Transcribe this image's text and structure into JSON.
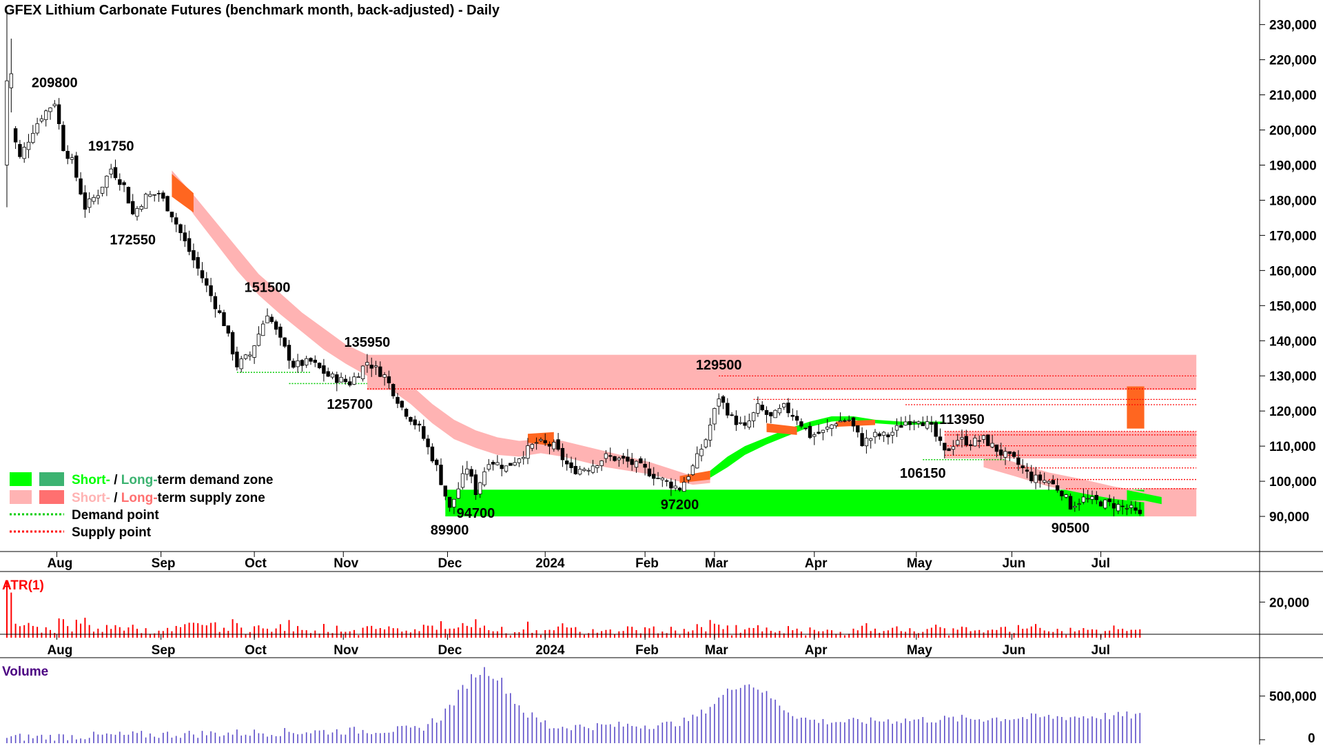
{
  "title": "GFEX Lithium Carbonate Futures (benchmark month, back-adjusted) - Daily",
  "colors": {
    "short_demand": "#00ff00",
    "long_demand": "#3cb371",
    "short_supply": "#ffb3b3",
    "long_supply": "#ff7070",
    "orange": "#ff6620",
    "atr_bar": "#ff0000",
    "volume_bar": "#5a4bc8",
    "demand_point": "#00cc00",
    "supply_point": "#ff0000",
    "atr_label": "#ff0000",
    "volume_label": "#4b0082"
  },
  "legend": {
    "demand_zone": {
      "short": "Short-",
      "sep": " / ",
      "long": "Long-",
      "rest": "term demand zone"
    },
    "supply_zone": {
      "short": "Short-",
      "sep": " / ",
      "long": "Long-",
      "rest": "term supply zone"
    },
    "demand_point": "Demand point",
    "supply_point": "Supply point"
  },
  "panels": {
    "atr_label": "ATR(1)",
    "volume_label": "Volume"
  },
  "chart_data": [
    {
      "type": "candlestick",
      "title": "GFEX Lithium Carbonate Futures (benchmark month, back-adjusted) - Daily",
      "ylim": [
        80000,
        237000
      ],
      "yticks": [
        "230,000",
        "220,000",
        "210,000",
        "200,000",
        "190,000",
        "180,000",
        "170,000",
        "160,000",
        "150,000",
        "140,000",
        "130,000",
        "120,000",
        "110,000",
        "100,000",
        "90,000"
      ],
      "ytick_values": [
        230000,
        220000,
        210000,
        200000,
        190000,
        180000,
        170000,
        160000,
        150000,
        140000,
        130000,
        120000,
        110000,
        100000,
        90000
      ],
      "xlabels": [
        "Aug",
        "Sep",
        "Oct",
        "Nov",
        "Dec",
        "2024",
        "Feb",
        "Mar",
        "Apr",
        "May",
        "Jun",
        "Jul"
      ],
      "xlabel_bars": [
        11.5,
        35.5,
        57,
        77.5,
        101.5,
        124,
        147,
        163,
        186,
        209.5,
        231.5,
        252
      ],
      "x_range_bars": [
        0,
        286
      ],
      "annotations": [
        {
          "text": "209800",
          "bar": 11,
          "value": 209800,
          "pos": "above"
        },
        {
          "text": "191750",
          "bar": 24,
          "value": 191750,
          "pos": "above"
        },
        {
          "text": "172550",
          "bar": 29,
          "value": 172550,
          "pos": "below"
        },
        {
          "text": "151500",
          "bar": 60,
          "value": 151500,
          "pos": "above"
        },
        {
          "text": "135950",
          "bar": 83,
          "value": 135950,
          "pos": "above"
        },
        {
          "text": "125700",
          "bar": 79,
          "value": 125700,
          "pos": "below"
        },
        {
          "text": "89900",
          "bar": 102,
          "value": 89900,
          "pos": "below"
        },
        {
          "text": "94700",
          "bar": 108,
          "value": 94700,
          "pos": "below"
        },
        {
          "text": "97200",
          "bar": 155,
          "value": 97200,
          "pos": "below"
        },
        {
          "text": "129500",
          "bar": 164,
          "value": 129500,
          "pos": "above"
        },
        {
          "text": "113950",
          "bar": 220,
          "value": 113950,
          "pos": "above"
        },
        {
          "text": "106150",
          "bar": 211,
          "value": 106150,
          "pos": "below"
        },
        {
          "text": "90500",
          "bar": 245,
          "value": 90500,
          "pos": "below"
        }
      ],
      "demand_zone": {
        "from_bar": 101,
        "to_bar": 262,
        "low": 90000,
        "high": 97600
      },
      "supply_zone_long": {
        "from_bar": 83,
        "to_bar": 274,
        "low": 126000,
        "high": 136000
      },
      "supply_zone_short": {
        "from_bar": 216,
        "to_bar": 274,
        "low": 106500,
        "high": 114200
      },
      "supply_zone_recent": {
        "from_bar": 262,
        "to_bar": 274,
        "low": 90000,
        "high": 98000
      },
      "orange_box": {
        "from_bar": 258,
        "to_bar": 262,
        "low": 115000,
        "high": 127000
      },
      "supply_lines": [
        {
          "value": 130000,
          "from_bar": 164,
          "to_bar": 274
        },
        {
          "value": 126300,
          "from_bar": 83,
          "to_bar": 274
        },
        {
          "value": 123300,
          "from_bar": 172,
          "to_bar": 274
        },
        {
          "value": 121800,
          "from_bar": 207,
          "to_bar": 274
        },
        {
          "value": 114200,
          "from_bar": 216,
          "to_bar": 274
        },
        {
          "value": 113200,
          "from_bar": 216,
          "to_bar": 274
        },
        {
          "value": 110100,
          "from_bar": 216,
          "to_bar": 274
        },
        {
          "value": 107400,
          "from_bar": 216,
          "to_bar": 274
        },
        {
          "value": 103800,
          "from_bar": 230,
          "to_bar": 274
        },
        {
          "value": 100500,
          "from_bar": 240,
          "to_bar": 274
        },
        {
          "value": 97900,
          "from_bar": 244,
          "to_bar": 274
        }
      ],
      "demand_lines": [
        {
          "value": 131000,
          "from_bar": 53,
          "to_bar": 70
        },
        {
          "value": 127800,
          "from_bar": 65,
          "to_bar": 83
        },
        {
          "value": 106150,
          "from_bar": 211,
          "to_bar": 230
        }
      ],
      "supply_band": [
        [
          38,
          188500,
          185000
        ],
        [
          43,
          181500,
          176000
        ],
        [
          48,
          174000,
          168000
        ],
        [
          53,
          166500,
          160000
        ],
        [
          58,
          159000,
          153000
        ],
        [
          63,
          153500,
          147500
        ],
        [
          68,
          148000,
          142500
        ],
        [
          73,
          143500,
          137500
        ],
        [
          78,
          139000,
          133500
        ],
        [
          83,
          136000,
          130000
        ],
        [
          88,
          132000,
          126500
        ],
        [
          93,
          127500,
          122000
        ],
        [
          98,
          122000,
          116500
        ],
        [
          103,
          117500,
          112000
        ],
        [
          108,
          114500,
          109500
        ],
        [
          113,
          112500,
          107500
        ],
        [
          118,
          111500,
          107000
        ],
        [
          123,
          112000,
          108000
        ],
        [
          128,
          111500,
          107000
        ],
        [
          133,
          110000,
          105500
        ],
        [
          138,
          108500,
          104000
        ],
        [
          143,
          107000,
          103000
        ],
        [
          148,
          105500,
          102000
        ],
        [
          153,
          103500,
          100500
        ],
        [
          158,
          101500,
          99000
        ],
        [
          162,
          102500,
          99500
        ]
      ],
      "supply_band_recent": [
        [
          225,
          108000,
          104000
        ],
        [
          232,
          105500,
          101500
        ],
        [
          240,
          102500,
          98500
        ],
        [
          248,
          100500,
          96500
        ],
        [
          255,
          98500,
          95000
        ],
        [
          262,
          97000,
          94000
        ],
        [
          266,
          96500,
          94000
        ]
      ],
      "demand_band": [
        [
          162,
          103000,
          101000
        ],
        [
          166,
          107000,
          104000
        ],
        [
          170,
          110000,
          107500
        ],
        [
          175,
          112500,
          110500
        ],
        [
          180,
          115000,
          113000
        ],
        [
          185,
          117000,
          115500
        ],
        [
          190,
          118500,
          117000
        ],
        [
          195,
          118500,
          117500
        ],
        [
          200,
          117500,
          116500
        ],
        [
          206,
          117000,
          116000
        ],
        [
          212,
          117000,
          116200
        ],
        [
          216,
          117000,
          116300
        ]
      ],
      "orange_segments": [
        [
          38,
          187500,
          181000,
          43,
          182000,
          176500
        ],
        [
          120,
          113500,
          111000,
          126,
          114000,
          110000
        ],
        [
          155,
          101500,
          99500,
          162,
          103000,
          100500
        ],
        [
          175,
          116500,
          114000,
          182,
          115500,
          113200
        ],
        [
          191,
          117000,
          115500,
          200,
          117500,
          116000
        ]
      ],
      "demand_band_recent": [
        [
          258,
          97500,
          94500
        ],
        [
          262,
          96500,
          94500
        ],
        [
          266,
          95500,
          93500
        ]
      ],
      "closing_pattern_note": "",
      "candles": [
        [
          0,
          190000,
          234000,
          178000,
          214000
        ],
        [
          1,
          212000,
          226000,
          205000,
          216000
        ]
      ]
    },
    {
      "type": "bar",
      "series": [
        {
          "name": "ATR(1)",
          "values": []
        }
      ],
      "ylim": [
        0,
        30000
      ],
      "yticks": [
        "20,000"
      ],
      "ytick_values": [
        20000
      ]
    },
    {
      "type": "bar",
      "series": [
        {
          "name": "Volume",
          "values": []
        }
      ],
      "ylim": [
        0,
        900000
      ],
      "yticks": [
        "500,000",
        "0"
      ],
      "ytick_values": [
        500000,
        0
      ]
    }
  ]
}
